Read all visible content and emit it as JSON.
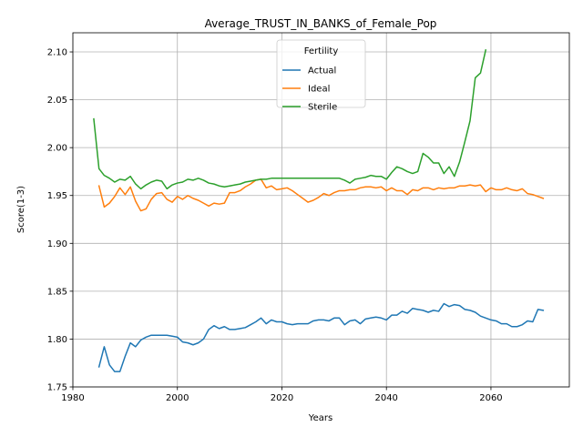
{
  "chart_data": {
    "type": "line",
    "title": "Average_TRUST_IN_BANKS_of_Female_Pop",
    "xlabel": "Years",
    "ylabel": "Score(1-3)",
    "xlim": [
      1980,
      2075
    ],
    "ylim": [
      1.75,
      2.12
    ],
    "xticks": [
      1980,
      2000,
      2020,
      2040,
      2060
    ],
    "yticks": [
      1.75,
      1.8,
      1.85,
      1.9,
      1.95,
      2.0,
      2.05,
      2.1
    ],
    "ytick_labels": [
      "1.75",
      "1.80",
      "1.85",
      "1.90",
      "1.95",
      "2.00",
      "2.05",
      "2.10"
    ],
    "grid": true,
    "legend": {
      "title": "Fertility",
      "placement": "upper-center"
    },
    "series": [
      {
        "name": "Actual",
        "color": "#1f77b4",
        "x": [
          1985,
          1986,
          1987,
          1988,
          1989,
          1990,
          1991,
          1992,
          1993,
          1994,
          1995,
          1996,
          1997,
          1998,
          1999,
          2000,
          2001,
          2002,
          2003,
          2004,
          2005,
          2006,
          2007,
          2008,
          2009,
          2010,
          2011,
          2012,
          2013,
          2014,
          2015,
          2016,
          2017,
          2018,
          2019,
          2020,
          2021,
          2022,
          2023,
          2024,
          2025,
          2026,
          2027,
          2028,
          2029,
          2030,
          2031,
          2032,
          2033,
          2034,
          2035,
          2036,
          2037,
          2038,
          2039,
          2040,
          2041,
          2042,
          2043,
          2044,
          2045,
          2046,
          2047,
          2048,
          2049,
          2050,
          2051,
          2052,
          2053,
          2054,
          2055,
          2056,
          2057,
          2058,
          2059,
          2060,
          2061,
          2062,
          2063,
          2064,
          2065,
          2066,
          2067,
          2068,
          2069,
          2070
        ],
        "values": [
          1.771,
          1.792,
          1.773,
          1.766,
          1.766,
          1.782,
          1.796,
          1.792,
          1.799,
          1.802,
          1.804,
          1.804,
          1.804,
          1.804,
          1.803,
          1.802,
          1.797,
          1.796,
          1.794,
          1.796,
          1.8,
          1.81,
          1.814,
          1.811,
          1.813,
          1.81,
          1.81,
          1.811,
          1.812,
          1.815,
          1.818,
          1.822,
          1.816,
          1.82,
          1.818,
          1.818,
          1.816,
          1.815,
          1.816,
          1.816,
          1.816,
          1.819,
          1.82,
          1.82,
          1.819,
          1.822,
          1.822,
          1.815,
          1.819,
          1.82,
          1.816,
          1.821,
          1.822,
          1.823,
          1.822,
          1.82,
          1.825,
          1.825,
          1.829,
          1.827,
          1.832,
          1.831,
          1.83,
          1.828,
          1.83,
          1.829,
          1.837,
          1.834,
          1.836,
          1.835,
          1.831,
          1.83,
          1.828,
          1.824,
          1.822,
          1.82,
          1.819,
          1.816,
          1.816,
          1.813,
          1.813,
          1.815,
          1.819,
          1.818,
          1.831,
          1.83
        ]
      },
      {
        "name": "Ideal",
        "color": "#ff7f0e",
        "x": [
          1985,
          1986,
          1987,
          1988,
          1989,
          1990,
          1991,
          1992,
          1993,
          1994,
          1995,
          1996,
          1997,
          1998,
          1999,
          2000,
          2001,
          2002,
          2003,
          2004,
          2005,
          2006,
          2007,
          2008,
          2009,
          2010,
          2011,
          2012,
          2013,
          2014,
          2015,
          2016,
          2017,
          2018,
          2019,
          2020,
          2021,
          2022,
          2023,
          2024,
          2025,
          2026,
          2027,
          2028,
          2029,
          2030,
          2031,
          2032,
          2033,
          2034,
          2035,
          2036,
          2037,
          2038,
          2039,
          2040,
          2041,
          2042,
          2043,
          2044,
          2045,
          2046,
          2047,
          2048,
          2049,
          2050,
          2051,
          2052,
          2053,
          2054,
          2055,
          2056,
          2057,
          2058,
          2059,
          2060,
          2061,
          2062,
          2063,
          2064,
          2065,
          2066,
          2067,
          2068,
          2069,
          2070
        ],
        "values": [
          1.96,
          1.938,
          1.942,
          1.949,
          1.958,
          1.951,
          1.959,
          1.944,
          1.934,
          1.936,
          1.946,
          1.952,
          1.953,
          1.946,
          1.943,
          1.949,
          1.946,
          1.95,
          1.947,
          1.945,
          1.942,
          1.939,
          1.942,
          1.941,
          1.942,
          1.953,
          1.953,
          1.955,
          1.959,
          1.962,
          1.966,
          1.967,
          1.958,
          1.96,
          1.956,
          1.957,
          1.958,
          1.955,
          1.951,
          1.947,
          1.943,
          1.945,
          1.948,
          1.952,
          1.95,
          1.953,
          1.955,
          1.955,
          1.956,
          1.956,
          1.958,
          1.959,
          1.959,
          1.958,
          1.959,
          1.955,
          1.958,
          1.955,
          1.955,
          1.951,
          1.956,
          1.955,
          1.958,
          1.958,
          1.956,
          1.958,
          1.957,
          1.958,
          1.958,
          1.96,
          1.96,
          1.961,
          1.96,
          1.961,
          1.954,
          1.958,
          1.956,
          1.956,
          1.958,
          1.956,
          1.955,
          1.957,
          1.952,
          1.951,
          1.949,
          1.947
        ]
      },
      {
        "name": "Sterile",
        "color": "#2ca02c",
        "x": [
          1984,
          1985,
          1986,
          1987,
          1988,
          1989,
          1990,
          1991,
          1992,
          1993,
          1994,
          1995,
          1996,
          1997,
          1998,
          1999,
          2000,
          2001,
          2002,
          2003,
          2004,
          2005,
          2006,
          2007,
          2008,
          2009,
          2010,
          2011,
          2012,
          2013,
          2014,
          2015,
          2016,
          2017,
          2018,
          2019,
          2020,
          2021,
          2022,
          2023,
          2024,
          2025,
          2026,
          2027,
          2028,
          2029,
          2030,
          2031,
          2032,
          2033,
          2034,
          2035,
          2036,
          2037,
          2038,
          2039,
          2040,
          2041,
          2042,
          2043,
          2044,
          2045,
          2046,
          2047,
          2048,
          2049,
          2050,
          2051,
          2052,
          2053,
          2054,
          2055,
          2056,
          2057,
          2058,
          2059
        ],
        "values": [
          2.03,
          1.978,
          1.971,
          1.968,
          1.964,
          1.967,
          1.966,
          1.97,
          1.962,
          1.957,
          1.961,
          1.964,
          1.966,
          1.965,
          1.957,
          1.961,
          1.963,
          1.964,
          1.967,
          1.966,
          1.968,
          1.966,
          1.963,
          1.962,
          1.96,
          1.959,
          1.96,
          1.961,
          1.962,
          1.964,
          1.965,
          1.966,
          1.967,
          1.967,
          1.968,
          1.968,
          1.968,
          1.968,
          1.968,
          1.968,
          1.968,
          1.968,
          1.968,
          1.968,
          1.968,
          1.968,
          1.968,
          1.968,
          1.966,
          1.963,
          1.967,
          1.968,
          1.969,
          1.971,
          1.97,
          1.97,
          1.967,
          1.974,
          1.98,
          1.978,
          1.975,
          1.973,
          1.975,
          1.994,
          1.99,
          1.984,
          1.984,
          1.973,
          1.98,
          1.97,
          1.985,
          2.006,
          2.028,
          2.073,
          2.078,
          2.102
        ]
      }
    ]
  }
}
